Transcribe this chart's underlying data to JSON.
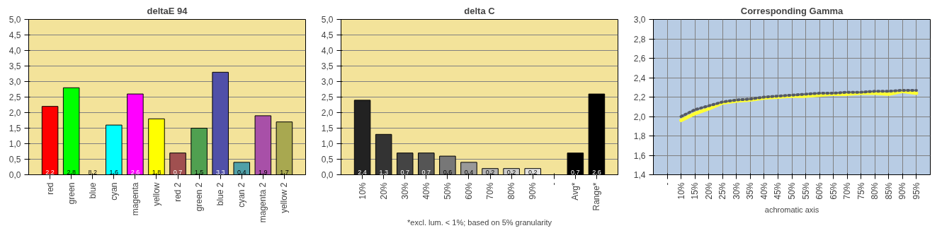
{
  "chart_data": [
    {
      "type": "bar",
      "title": "deltaE 94",
      "categories": [
        "red",
        "green",
        "blue",
        "cyan",
        "magenta",
        "yellow",
        "red 2",
        "green 2",
        "blue 2",
        "cyan 2",
        "magenta 2",
        "yellow 2"
      ],
      "values": [
        2.2,
        2.8,
        null,
        1.6,
        2.6,
        1.8,
        0.7,
        1.5,
        3.3,
        0.4,
        1.9,
        1.7
      ],
      "value_labels": [
        "2,2",
        "2,8",
        "8,2",
        "1,6",
        "2,6",
        "1,8",
        "0,7",
        "1,5",
        "3,3",
        "0,4",
        "1,9",
        "1,7"
      ],
      "colors": [
        "#ff0000",
        "#00ff00",
        "#0000ff",
        "#00ffff",
        "#ff00ff",
        "#ffff00",
        "#a05050",
        "#50a050",
        "#5050a8",
        "#50a0a8",
        "#a850a8",
        "#a8a850"
      ],
      "ylim": [
        0,
        5
      ],
      "yticks": [
        {
          "value": 0,
          "label": "0,0"
        },
        {
          "value": 0.5,
          "label": "0,5"
        },
        {
          "value": 1,
          "label": "1,0"
        },
        {
          "value": 1.5,
          "label": "1,5"
        },
        {
          "value": 2,
          "label": "2,0"
        },
        {
          "value": 2.5,
          "label": "2,5"
        },
        {
          "value": 3,
          "label": "3,0"
        },
        {
          "value": 3.5,
          "label": "3,5"
        },
        {
          "value": 4,
          "label": "4,0"
        },
        {
          "value": 4.5,
          "label": "4,5"
        },
        {
          "value": 5,
          "label": "5,0"
        }
      ],
      "grid": "y"
    },
    {
      "type": "bar",
      "title": "delta C",
      "categories": [
        "10%",
        "20%",
        "30%",
        "40%",
        "50%",
        "60%",
        "70%",
        "80%",
        "90%",
        "-",
        "Avg*",
        "Range*"
      ],
      "values": [
        2.4,
        1.3,
        0.7,
        0.7,
        0.6,
        0.4,
        0.2,
        0.2,
        0.2,
        null,
        0.7,
        2.6
      ],
      "value_labels": [
        "2,4",
        "1,3",
        "0,7",
        "0,7",
        "0,6",
        "0,4",
        "0,2",
        "0,2",
        "0,2",
        null,
        "0,7",
        "2,6"
      ],
      "colors": [
        "#222222",
        "#333333",
        "#444444",
        "#555555",
        "#777777",
        "#999999",
        "#b4b4b4",
        "#cccccc",
        "#e2e2e2",
        "#000000",
        "#000000",
        "#000000"
      ],
      "ylim": [
        0,
        5
      ],
      "yticks": [
        {
          "value": 0,
          "label": "0,0"
        },
        {
          "value": 0.5,
          "label": "0,5"
        },
        {
          "value": 1,
          "label": "1,0"
        },
        {
          "value": 1.5,
          "label": "1,5"
        },
        {
          "value": 2,
          "label": "2,0"
        },
        {
          "value": 2.5,
          "label": "2,5"
        },
        {
          "value": 3,
          "label": "3,0"
        },
        {
          "value": 3.5,
          "label": "3,5"
        },
        {
          "value": 4,
          "label": "4,0"
        },
        {
          "value": 4.5,
          "label": "4,5"
        },
        {
          "value": 5,
          "label": "5,0"
        }
      ],
      "grid": "y",
      "annotations": [
        "*excl. lum. < 1%; based on 5% granularity"
      ]
    },
    {
      "type": "line",
      "title": "Corresponding Gamma",
      "xlabel": "achromatic axis",
      "categories": [
        "-",
        "10%",
        "15%",
        "20%",
        "25%",
        "30%",
        "35%",
        "40%",
        "45%",
        "50%",
        "55%",
        "60%",
        "65%",
        "70%",
        "75%",
        "80%",
        "85%",
        "90%",
        "95%"
      ],
      "series": [
        {
          "color": "#ffff33",
          "line_style": "solid",
          "values": [
            null,
            1.96,
            2.03,
            2.08,
            2.14,
            2.16,
            2.17,
            2.19,
            2.2,
            2.21,
            2.21,
            2.22,
            2.23,
            2.23,
            2.24,
            2.24,
            2.23,
            2.26,
            2.24
          ]
        },
        {
          "color": "#555a66",
          "line_style": "dotted",
          "values": [
            null,
            2.0,
            2.07,
            2.11,
            2.15,
            2.17,
            2.18,
            2.2,
            2.21,
            2.22,
            2.23,
            2.24,
            2.24,
            2.25,
            2.25,
            2.26,
            2.26,
            2.27,
            2.27
          ]
        }
      ],
      "ylim": [
        1.4,
        3.0
      ],
      "yticks": [
        {
          "value": 1.4,
          "label": "1,4"
        },
        {
          "value": 1.6,
          "label": "1,6"
        },
        {
          "value": 1.8,
          "label": "1,8"
        },
        {
          "value": 2.0,
          "label": "2,0"
        },
        {
          "value": 2.2,
          "label": "2,2"
        },
        {
          "value": 2.4,
          "label": "2,4"
        },
        {
          "value": 2.6,
          "label": "2,6"
        },
        {
          "value": 2.8,
          "label": "2,8"
        },
        {
          "value": 3.0,
          "label": "3,0"
        }
      ],
      "grid": true,
      "marker": "none"
    }
  ]
}
